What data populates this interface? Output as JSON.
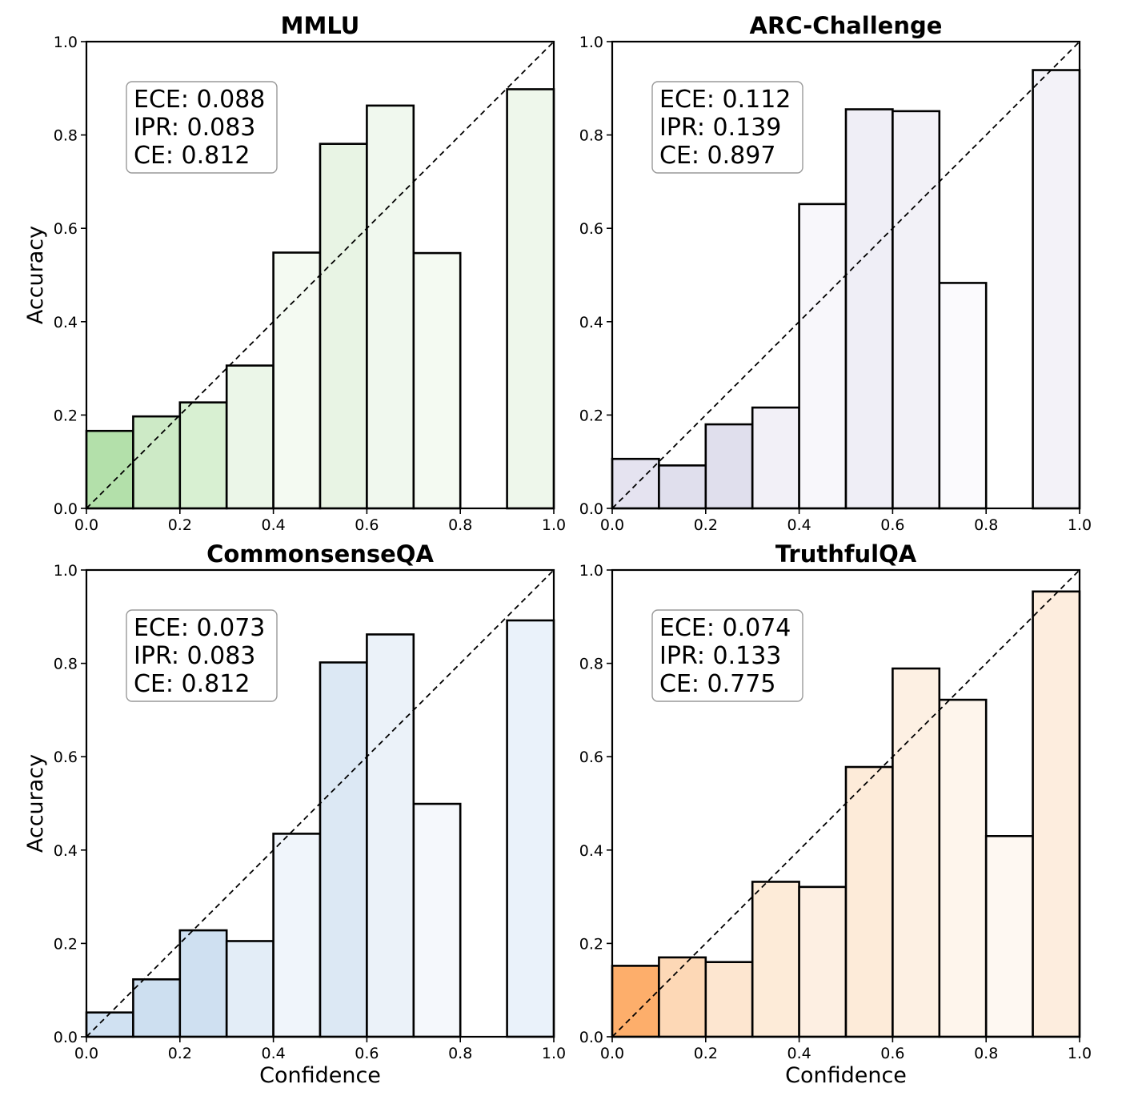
{
  "chart_data": [
    {
      "type": "bar",
      "title": "MMLU",
      "xlabel": "",
      "ylabel": "Accuracy",
      "xlim": [
        0,
        1
      ],
      "ylim": [
        0,
        1
      ],
      "xticks": [
        "0.0",
        "0.2",
        "0.4",
        "0.6",
        "0.8",
        "1.0"
      ],
      "yticks": [
        "0.0",
        "0.2",
        "0.4",
        "0.6",
        "0.8",
        "1.0"
      ],
      "bins": [
        [
          0.0,
          0.1
        ],
        [
          0.1,
          0.2
        ],
        [
          0.2,
          0.3
        ],
        [
          0.3,
          0.4
        ],
        [
          0.4,
          0.5
        ],
        [
          0.5,
          0.6
        ],
        [
          0.6,
          0.7
        ],
        [
          0.7,
          0.8
        ],
        [
          0.8,
          0.9
        ],
        [
          0.9,
          1.0
        ]
      ],
      "values": [
        0.166,
        0.197,
        0.227,
        0.306,
        0.548,
        0.781,
        0.863,
        0.547,
        0,
        0.898
      ],
      "bar_colors": [
        "#b3e0aa",
        "#cdeac6",
        "#d8f0d2",
        "#ebf6e8",
        "#f4faf2",
        "#e8f4e4",
        "#f0f8ee",
        "#f4faf2",
        "#ffffff",
        "#eef7eb"
      ],
      "diagonal": "dashed",
      "metrics": [
        "ECE: 0.088",
        "IPR: 0.083",
        "CE: 0.812"
      ]
    },
    {
      "type": "bar",
      "title": "ARC-Challenge",
      "xlabel": "",
      "ylabel": "",
      "xlim": [
        0,
        1
      ],
      "ylim": [
        0,
        1
      ],
      "xticks": [
        "0.0",
        "0.2",
        "0.4",
        "0.6",
        "0.8",
        "1.0"
      ],
      "yticks": [
        "0.0",
        "0.2",
        "0.4",
        "0.6",
        "0.8",
        "1.0"
      ],
      "bins": [
        [
          0.0,
          0.1
        ],
        [
          0.1,
          0.2
        ],
        [
          0.2,
          0.3
        ],
        [
          0.3,
          0.4
        ],
        [
          0.4,
          0.5
        ],
        [
          0.5,
          0.6
        ],
        [
          0.6,
          0.7
        ],
        [
          0.7,
          0.8
        ],
        [
          0.8,
          0.9
        ],
        [
          0.9,
          1.0
        ]
      ],
      "values": [
        0.106,
        0.092,
        0.18,
        0.216,
        0.652,
        0.855,
        0.851,
        0.483,
        0,
        0.939
      ],
      "bar_colors": [
        "#e5e3f0",
        "#e0dfed",
        "#e0dfed",
        "#f2f0f7",
        "#f8f7fb",
        "#efeef6",
        "#f2f1f7",
        "#fbfafd",
        "#ffffff",
        "#f3f2f8"
      ],
      "diagonal": "dashed",
      "metrics": [
        "ECE: 0.112",
        "IPR: 0.139",
        "CE: 0.897"
      ]
    },
    {
      "type": "bar",
      "title": "CommonsenseQA",
      "xlabel": "Confidence",
      "ylabel": "Accuracy",
      "xlim": [
        0,
        1
      ],
      "ylim": [
        0,
        1
      ],
      "xticks": [
        "0.0",
        "0.2",
        "0.4",
        "0.6",
        "0.8",
        "1.0"
      ],
      "yticks": [
        "0.0",
        "0.2",
        "0.4",
        "0.6",
        "0.8",
        "1.0"
      ],
      "bins": [
        [
          0.0,
          0.1
        ],
        [
          0.1,
          0.2
        ],
        [
          0.2,
          0.3
        ],
        [
          0.3,
          0.4
        ],
        [
          0.4,
          0.5
        ],
        [
          0.5,
          0.6
        ],
        [
          0.6,
          0.7
        ],
        [
          0.7,
          0.8
        ],
        [
          0.8,
          0.9
        ],
        [
          0.9,
          1.0
        ]
      ],
      "values": [
        0.052,
        0.123,
        0.228,
        0.205,
        0.435,
        0.802,
        0.862,
        0.499,
        0,
        0.892
      ],
      "bar_colors": [
        "#d0e1f2",
        "#cddff0",
        "#cfe0f1",
        "#e3edf7",
        "#f0f5fb",
        "#dce8f4",
        "#ebf2f9",
        "#f5f8fc",
        "#ffffff",
        "#eaf2fa"
      ],
      "diagonal": "dashed",
      "metrics": [
        "ECE: 0.073",
        "IPR: 0.083",
        "CE: 0.812"
      ]
    },
    {
      "type": "bar",
      "title": "TruthfulQA",
      "xlabel": "Confidence",
      "ylabel": "",
      "xlim": [
        0,
        1
      ],
      "ylim": [
        0,
        1
      ],
      "xticks": [
        "0.0",
        "0.2",
        "0.4",
        "0.6",
        "0.8",
        "1.0"
      ],
      "yticks": [
        "0.0",
        "0.2",
        "0.4",
        "0.6",
        "0.8",
        "1.0"
      ],
      "bins": [
        [
          0.0,
          0.1
        ],
        [
          0.1,
          0.2
        ],
        [
          0.2,
          0.3
        ],
        [
          0.3,
          0.4
        ],
        [
          0.4,
          0.5
        ],
        [
          0.5,
          0.6
        ],
        [
          0.6,
          0.7
        ],
        [
          0.7,
          0.8
        ],
        [
          0.8,
          0.9
        ],
        [
          0.9,
          1.0
        ]
      ],
      "values": [
        0.152,
        0.17,
        0.16,
        0.332,
        0.321,
        0.578,
        0.789,
        0.722,
        0.43,
        0.954
      ],
      "bar_colors": [
        "#fdae6b",
        "#fdd8b6",
        "#fde6d0",
        "#fdebd8",
        "#fdefe2",
        "#fdebd9",
        "#fdf0e3",
        "#fef5ec",
        "#fef8f2",
        "#fdedde"
      ],
      "diagonal": "dashed",
      "metrics": [
        "ECE: 0.074",
        "IPR: 0.133",
        "CE: 0.775"
      ]
    }
  ]
}
